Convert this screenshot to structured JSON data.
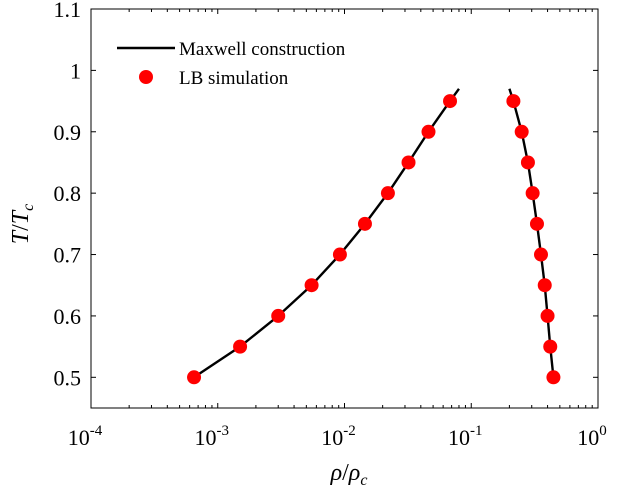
{
  "chart_data": {
    "type": "scatter",
    "title": "",
    "xlabel": "ρ/ρ_c",
    "ylabel": "T/T_c",
    "xscale": "log",
    "xlim": [
      0.0001,
      1
    ],
    "ylim": [
      0.45,
      1.1
    ],
    "xticks": [
      {
        "value": 0.0001,
        "base": "10",
        "exp": "-4"
      },
      {
        "value": 0.001,
        "base": "10",
        "exp": "-3"
      },
      {
        "value": 0.01,
        "base": "10",
        "exp": "-2"
      },
      {
        "value": 0.1,
        "base": "10",
        "exp": "-1"
      },
      {
        "value": 1,
        "base": "10",
        "exp": "0"
      }
    ],
    "yticks": [
      {
        "value": 0.5,
        "label": "0.5"
      },
      {
        "value": 0.6,
        "label": "0.6"
      },
      {
        "value": 0.7,
        "label": "0.7"
      },
      {
        "value": 0.8,
        "label": "0.8"
      },
      {
        "value": 0.9,
        "label": "0.9"
      },
      {
        "value": 1.0,
        "label": "1"
      },
      {
        "value": 1.1,
        "label": "1.1"
      }
    ],
    "grid": false,
    "legend": "top-left",
    "series": [
      {
        "name": "Maxwell construction",
        "kind": "line",
        "color": "#000000",
        "branches": [
          {
            "x": [
              0.00065,
              0.0015,
              0.003,
              0.0055,
              0.0092,
              0.0145,
              0.022,
              0.032,
              0.046,
              0.068,
              0.08
            ],
            "y": [
              0.5,
              0.55,
              0.6,
              0.65,
              0.7,
              0.75,
              0.8,
              0.85,
              0.9,
              0.95,
              0.97
            ]
          },
          {
            "x": [
              0.2,
              0.215,
              0.25,
              0.28,
              0.305,
              0.33,
              0.355,
              0.38,
              0.4,
              0.42,
              0.445
            ],
            "y": [
              0.97,
              0.95,
              0.9,
              0.85,
              0.8,
              0.75,
              0.7,
              0.65,
              0.6,
              0.55,
              0.5
            ]
          }
        ]
      },
      {
        "name": "LB simulation",
        "kind": "marker",
        "color": "#ff0000",
        "x": [
          0.00065,
          0.0015,
          0.003,
          0.0055,
          0.0092,
          0.0145,
          0.022,
          0.032,
          0.046,
          0.068,
          0.215,
          0.25,
          0.28,
          0.305,
          0.33,
          0.355,
          0.38,
          0.4,
          0.42,
          0.445
        ],
        "y": [
          0.5,
          0.55,
          0.6,
          0.65,
          0.7,
          0.75,
          0.8,
          0.85,
          0.9,
          0.95,
          0.95,
          0.9,
          0.85,
          0.8,
          0.75,
          0.7,
          0.65,
          0.6,
          0.55,
          0.5
        ]
      }
    ],
    "axis_text": {
      "x": {
        "rho": "ρ",
        "slash": "/",
        "rho_c": "ρ",
        "sub": "c"
      },
      "y": {
        "T": "T",
        "slash": "/",
        "T_c": "T",
        "sub": "c"
      }
    }
  }
}
